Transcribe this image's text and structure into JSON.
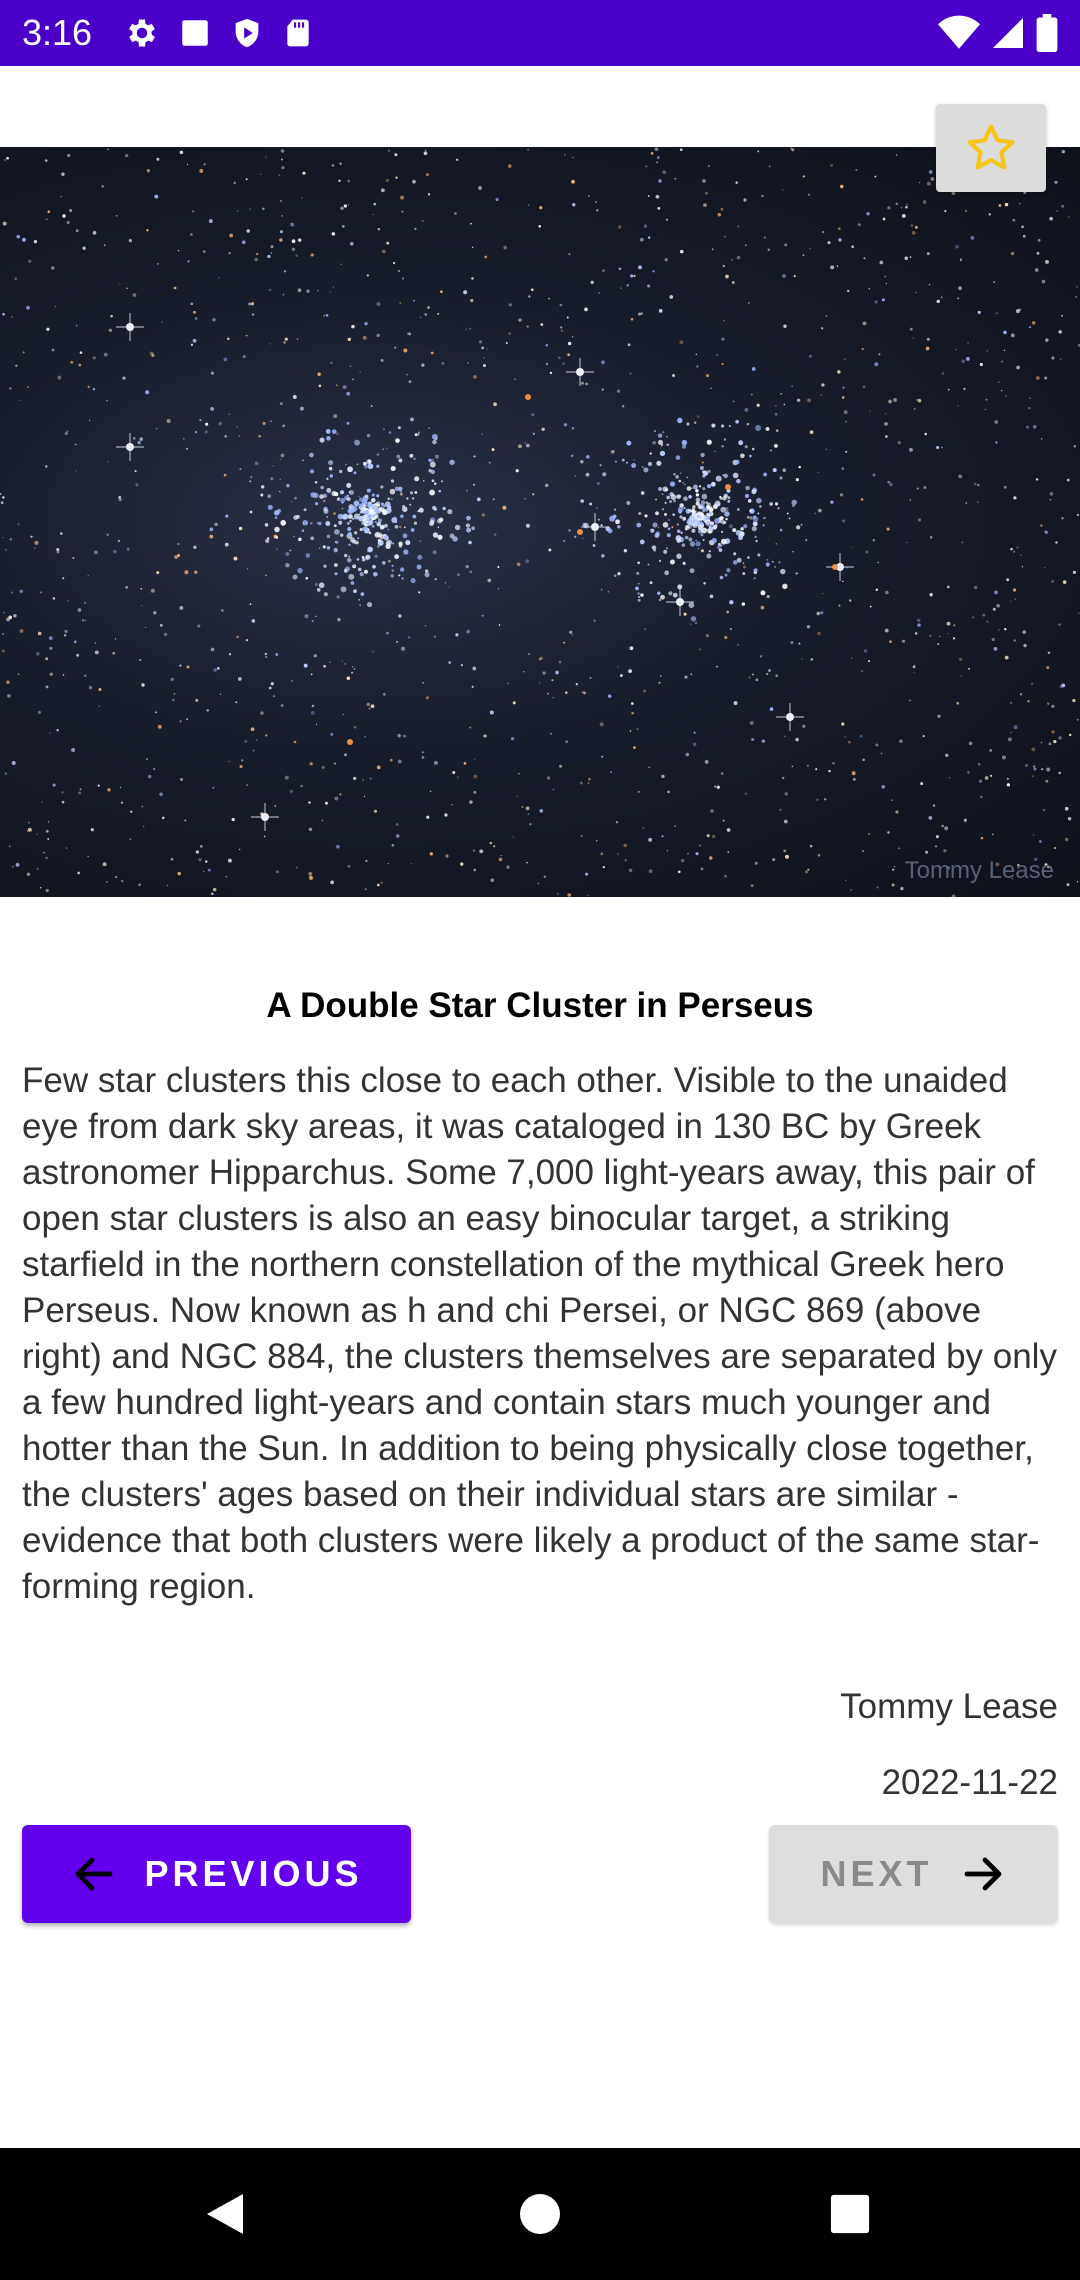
{
  "status_bar": {
    "time": "3:16",
    "left_icons": [
      "gear-icon",
      "square-icon",
      "shield-play-icon",
      "sd-card-icon"
    ],
    "right_icons": [
      "wifi-icon",
      "signal-icon",
      "battery-icon"
    ],
    "background": "#4a00c8"
  },
  "image": {
    "watermark": "Tommy Lease"
  },
  "favorite": {
    "icon": "star-outline-icon",
    "color": "#f5c518"
  },
  "apod": {
    "title": "A Double Star Cluster in Perseus",
    "explanation": "Few star clusters this close to each other.  Visible to the unaided eye from dark sky areas, it was cataloged in 130 BC by Greek astronomer Hipparchus.  Some 7,000 light-years away, this pair of open star clusters is also an easy binocular target, a striking starfield in the northern constellation of the mythical Greek hero Perseus. Now known as h and chi Persei, or NGC 869 (above right) and NGC 884, the clusters themselves are separated by only a few hundred light-years and contain stars much younger and hotter than the Sun.  In addition to being physically close together, the clusters' ages based on their individual stars are similar - evidence that both clusters were likely a product of the same star-forming region.",
    "copyright": "Tommy Lease",
    "date": "2022-11-22"
  },
  "navigation": {
    "previous_label": "PREVIOUS",
    "next_label": "NEXT",
    "previous_color": "#6200ee",
    "next_color": "#dedede"
  },
  "system_nav": {
    "buttons": [
      "back-icon",
      "home-icon",
      "recents-icon"
    ]
  }
}
